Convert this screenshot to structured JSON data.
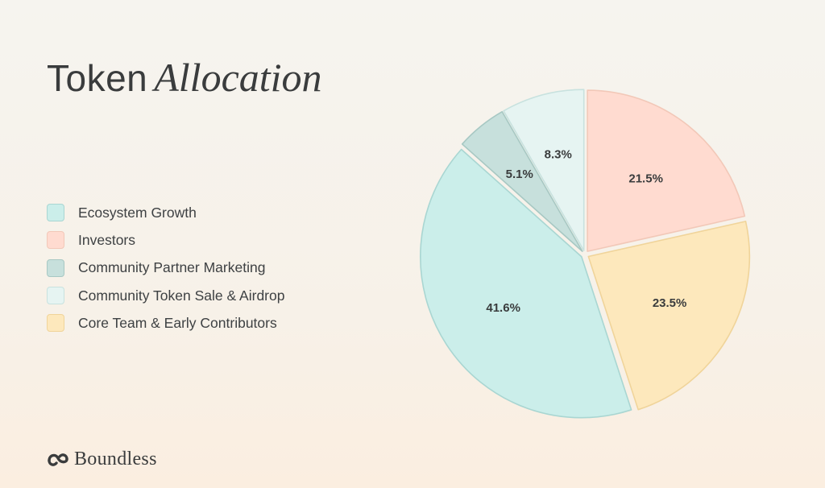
{
  "header": {
    "title_word": "Token",
    "title_italic": "Allocation"
  },
  "brand": {
    "name": "Boundless",
    "icon": "boundless-logo-icon"
  },
  "chart_data": {
    "type": "pie",
    "title": "Token Allocation",
    "legend_placement": "left",
    "slices": [
      {
        "name": "Ecosystem Growth",
        "value": 41.6,
        "label": "41.6%",
        "color": "#cbeeea",
        "stroke": "#a9d6d2"
      },
      {
        "name": "Investors",
        "value": 21.5,
        "label": "21.5%",
        "color": "#ffdbd0",
        "stroke": "#f2c8b8"
      },
      {
        "name": "Community Partner Marketing",
        "value": 5.1,
        "label": "5.1%",
        "color": "#c7e0dc",
        "stroke": "#a7c8c3"
      },
      {
        "name": "Community Token Sale & Airdrop",
        "value": 8.3,
        "label": "8.3%",
        "color": "#e6f4f2",
        "stroke": "#c8e2df"
      },
      {
        "name": "Core Team & Early Contributors",
        "value": 23.5,
        "label": "23.5%",
        "color": "#fde8bc",
        "stroke": "#f0d49a"
      }
    ],
    "draw_order": [
      "Investors",
      "Core Team & Early Contributors",
      "Ecosystem Growth",
      "Community Partner Marketing",
      "Community Token Sale & Airdrop"
    ]
  }
}
